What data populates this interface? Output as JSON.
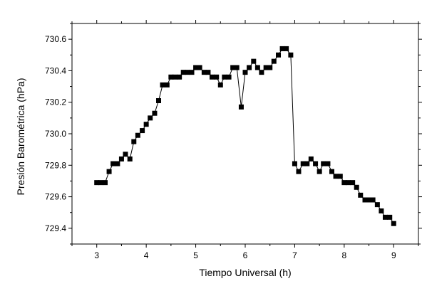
{
  "chart_data": {
    "type": "scatter",
    "xlabel": "Tiempo Universal (h)",
    "ylabel": "Presión Barométrica (hPa)",
    "xlim": [
      2.5,
      9.5
    ],
    "ylim": [
      729.3,
      730.7
    ],
    "xticks": [
      3,
      4,
      5,
      6,
      7,
      8,
      9
    ],
    "yticks": [
      729.4,
      729.6,
      729.8,
      730.0,
      730.2,
      730.4,
      730.6
    ],
    "ytick_labels": [
      "729.4",
      "729.6",
      "729.8",
      "730.0",
      "730.2",
      "730.4",
      "730.6"
    ],
    "grid": false,
    "marker": "square",
    "connected": true,
    "series": [
      {
        "x": [
          3.0,
          3.08,
          3.17,
          3.25,
          3.33,
          3.42,
          3.5,
          3.58,
          3.67,
          3.75,
          3.83,
          3.92,
          4.0,
          4.08,
          4.17,
          4.25,
          4.33,
          4.42,
          4.5,
          4.58,
          4.67,
          4.75,
          4.83,
          4.92,
          5.0,
          5.08,
          5.17,
          5.25,
          5.33,
          5.42,
          5.5,
          5.58,
          5.67,
          5.75,
          5.83,
          5.92,
          6.0,
          6.08,
          6.17,
          6.25,
          6.33,
          6.42,
          6.5,
          6.58,
          6.67,
          6.75,
          6.83,
          6.92,
          7.0,
          7.08,
          7.17,
          7.25,
          7.33,
          7.42,
          7.5,
          7.58,
          7.67,
          7.75,
          7.83,
          7.92,
          8.0,
          8.08,
          8.17,
          8.25,
          8.33,
          8.42,
          8.5,
          8.58,
          8.67,
          8.75,
          8.83,
          8.92,
          9.0
        ],
        "y": [
          729.69,
          729.69,
          729.69,
          729.76,
          729.81,
          729.81,
          729.84,
          729.87,
          729.84,
          729.95,
          729.99,
          730.02,
          730.06,
          730.1,
          730.13,
          730.21,
          730.31,
          730.31,
          730.36,
          730.36,
          730.36,
          730.39,
          730.39,
          730.39,
          730.42,
          730.42,
          730.39,
          730.39,
          730.36,
          730.36,
          730.31,
          730.36,
          730.36,
          730.42,
          730.42,
          730.17,
          730.39,
          730.42,
          730.46,
          730.42,
          730.39,
          730.42,
          730.42,
          730.46,
          730.5,
          730.54,
          730.54,
          730.5,
          729.81,
          729.76,
          729.81,
          729.81,
          729.84,
          729.81,
          729.76,
          729.81,
          729.81,
          729.76,
          729.73,
          729.73,
          729.69,
          729.69,
          729.69,
          729.66,
          729.61,
          729.58,
          729.58,
          729.58,
          729.55,
          729.51,
          729.47,
          729.47,
          729.43
        ]
      }
    ]
  }
}
